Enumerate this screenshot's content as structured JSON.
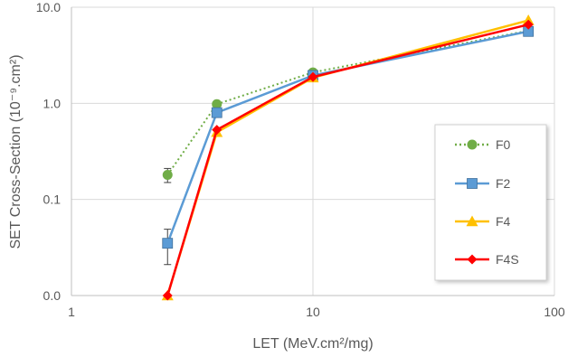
{
  "chart_data": {
    "type": "line",
    "title": "",
    "xlabel": "LET (MeV.cm²/mg)",
    "ylabel": "SET Cross-Section (10⁻⁹.cm²)",
    "x_scale": "log",
    "y_scale": "log",
    "xlim": [
      1,
      100
    ],
    "ylim": [
      0.01,
      10
    ],
    "x_ticks": [
      1,
      10,
      100
    ],
    "x_tick_labels": [
      "1",
      "10",
      "100"
    ],
    "y_ticks": [
      0.01,
      0.1,
      1,
      10
    ],
    "y_tick_labels": [
      "0.0",
      "0.1",
      "1.0",
      "10.0"
    ],
    "grid": true,
    "legend_position": "right",
    "series": [
      {
        "name": "F0",
        "color": "#70AD47",
        "line_style": "dotted",
        "marker": "circle",
        "x": [
          2.5,
          4,
          10,
          78
        ],
        "y": [
          0.18,
          0.98,
          2.1,
          5.7
        ],
        "error": [
          0.03,
          0,
          0,
          0
        ]
      },
      {
        "name": "F2",
        "color": "#5B9BD5",
        "line_style": "solid",
        "marker": "square",
        "x": [
          2.5,
          4,
          10,
          78
        ],
        "y": [
          0.035,
          0.8,
          1.95,
          5.6
        ],
        "error": [
          0.014,
          0,
          0,
          0
        ]
      },
      {
        "name": "F4",
        "color": "#FFC000",
        "line_style": "solid",
        "marker": "triangle",
        "x": [
          2.5,
          4,
          10,
          78
        ],
        "y": [
          0.01,
          0.5,
          1.85,
          7.3
        ],
        "error": [
          0,
          0,
          0,
          0
        ]
      },
      {
        "name": "F4S",
        "color": "#FF0000",
        "line_style": "solid",
        "marker": "diamond",
        "x": [
          2.5,
          4,
          10,
          78
        ],
        "y": [
          0.01,
          0.53,
          1.88,
          6.6
        ],
        "error": [
          0,
          0,
          0,
          0
        ]
      }
    ]
  }
}
